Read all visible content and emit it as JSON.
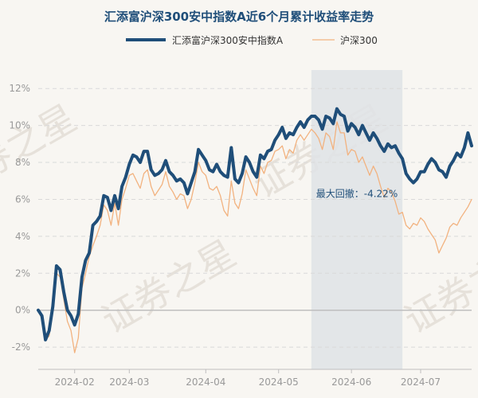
{
  "colors": {
    "background": "#f8f6f2",
    "fund_line": "#1f4e79",
    "index_line": "#f2b27f",
    "drawdown_band": "#dfe3e6",
    "grid": "#d9d9d9",
    "zero_line": "#bfbfbf",
    "title": "#1f4e79"
  },
  "watermark": "证券之星",
  "chart_data": {
    "type": "line",
    "title": "汇添富沪深300安中指数A近6个月累计收益率走势",
    "xlabel": "",
    "ylabel": "",
    "ylim": [
      -3.2,
      13.0
    ],
    "ytick_values": [
      -2,
      0,
      2,
      4,
      6,
      8,
      10,
      12
    ],
    "ytick_labels": [
      "-2%",
      "0%",
      "2%",
      "4%",
      "6%",
      "8%",
      "10%",
      "12%"
    ],
    "x_range": [
      0,
      119
    ],
    "xtick_positions": [
      10,
      25,
      46,
      66,
      86,
      105
    ],
    "xtick_labels": [
      "2024-02",
      "2024-03",
      "2024-04",
      "2024-05",
      "2024-06",
      "2024-07"
    ],
    "legend": {
      "position": "top-center"
    },
    "annotation": {
      "text": "最大回撤：-4.22%",
      "x_start": 75,
      "x_end": 100,
      "anchor_y": 6.3
    },
    "series": [
      {
        "name": "汇添富沪深300安中指数A",
        "values": [
          0,
          -0.3,
          -1.6,
          -1.1,
          0.2,
          2.4,
          2.2,
          1.0,
          0.0,
          -0.3,
          -0.8,
          -0.2,
          1.8,
          2.7,
          3.1,
          4.6,
          4.8,
          5.1,
          6.2,
          6.1,
          5.4,
          6.2,
          5.5,
          6.7,
          7.2,
          7.9,
          8.4,
          8.3,
          8.0,
          8.6,
          8.6,
          7.6,
          7.3,
          7.4,
          7.6,
          8.1,
          7.5,
          7.3,
          7.0,
          7.1,
          6.9,
          6.3,
          6.9,
          7.5,
          8.7,
          8.4,
          8.1,
          7.6,
          7.5,
          7.9,
          7.5,
          7.3,
          7.2,
          8.8,
          7.1,
          6.9,
          7.4,
          8.3,
          8.0,
          7.5,
          7.2,
          8.4,
          8.2,
          8.6,
          8.7,
          9.2,
          9.5,
          9.9,
          9.3,
          9.6,
          9.5,
          9.9,
          10.2,
          9.9,
          10.3,
          10.5,
          10.5,
          10.3,
          9.8,
          10.5,
          10.4,
          10.1,
          10.9,
          10.6,
          10.5,
          9.7,
          10.1,
          9.9,
          9.5,
          10.0,
          9.6,
          9.2,
          9.6,
          9.3,
          8.9,
          8.6,
          9.0,
          8.8,
          8.9,
          8.5,
          8.2,
          7.4,
          7.1,
          6.9,
          7.1,
          7.5,
          7.5,
          7.9,
          8.2,
          8.0,
          7.6,
          7.5,
          7.2,
          7.8,
          8.1,
          8.5,
          8.3,
          8.8,
          9.6,
          8.9
        ],
        "color": "#1f4e79"
      },
      {
        "name": "沪深300",
        "values": [
          0,
          -0.5,
          -1.6,
          -1.4,
          0.1,
          2.0,
          1.8,
          0.6,
          -0.6,
          -1.1,
          -2.3,
          -1.5,
          1.2,
          2.0,
          2.9,
          3.5,
          4.0,
          4.6,
          5.7,
          5.4,
          4.6,
          5.8,
          4.6,
          6.0,
          6.6,
          7.3,
          7.4,
          7.0,
          6.6,
          7.4,
          7.6,
          6.7,
          6.2,
          6.5,
          6.8,
          7.5,
          6.7,
          6.4,
          6.0,
          6.3,
          6.2,
          5.5,
          6.0,
          6.9,
          8.0,
          7.5,
          7.3,
          6.6,
          6.5,
          6.7,
          6.2,
          5.4,
          5.1,
          7.0,
          5.8,
          5.5,
          6.3,
          7.6,
          7.1,
          6.6,
          6.2,
          7.8,
          7.4,
          8.0,
          8.1,
          8.6,
          8.7,
          8.9,
          8.2,
          8.7,
          8.5,
          9.2,
          9.5,
          9.2,
          9.5,
          9.8,
          9.6,
          9.3,
          8.7,
          9.6,
          9.4,
          8.7,
          10.2,
          9.6,
          9.6,
          8.4,
          8.7,
          8.6,
          8.0,
          8.3,
          7.8,
          7.3,
          7.8,
          7.4,
          6.7,
          6.1,
          6.6,
          6.4,
          5.9,
          5.2,
          5.3,
          4.6,
          4.4,
          4.7,
          4.6,
          5.0,
          4.8,
          4.4,
          4.1,
          3.8,
          3.1,
          3.5,
          3.9,
          4.5,
          4.7,
          4.6,
          5.0,
          5.3,
          5.6,
          6.0
        ],
        "color": "#f2b27f"
      }
    ]
  }
}
